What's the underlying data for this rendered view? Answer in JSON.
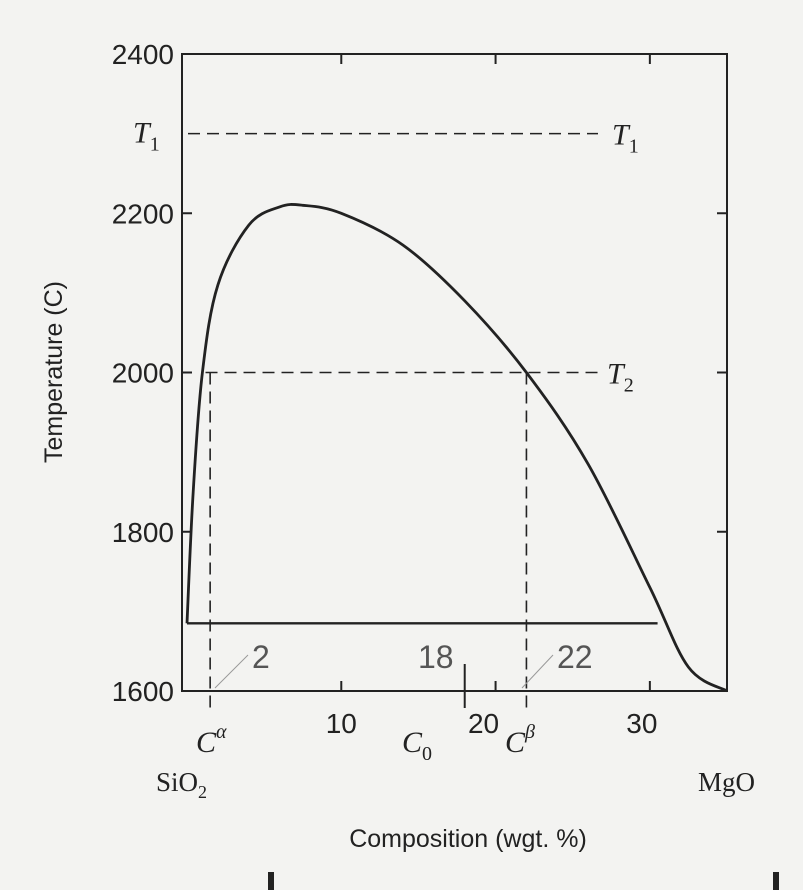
{
  "chart_data": {
    "type": "line",
    "title": "",
    "xlabel": "Composition (wgt. %)",
    "ylabel": "Temperature (C)",
    "xlim": [
      0,
      35
    ],
    "ylim": [
      1600,
      2400
    ],
    "x_ticks": [
      10,
      20,
      30
    ],
    "y_ticks": [
      2400,
      2200,
      2000,
      1800,
      1600
    ],
    "grid": false,
    "legend": "none",
    "left_component": "SiO",
    "left_component_sub": "2",
    "right_component": "MgO",
    "miscibility_gap": [
      [
        0.0,
        1685
      ],
      [
        0.4,
        1850
      ],
      [
        1.0,
        2000
      ],
      [
        2.0,
        2110
      ],
      [
        4.0,
        2185
      ],
      [
        6.0,
        2208
      ],
      [
        7.5,
        2210
      ],
      [
        10.0,
        2200
      ],
      [
        14.0,
        2160
      ],
      [
        18.0,
        2090
      ],
      [
        22.0,
        2000
      ],
      [
        26.0,
        1885
      ],
      [
        30.0,
        1730
      ],
      [
        32.5,
        1630
      ],
      [
        35.0,
        1600
      ]
    ],
    "eutectic_line": {
      "y": 1685,
      "x": [
        0.0,
        30.5
      ]
    },
    "isotherms": [
      {
        "symbol": "T",
        "sub": "1",
        "y": 2300
      },
      {
        "symbol": "T",
        "sub": "2",
        "y": 2000
      }
    ],
    "compositions": [
      {
        "symbol": "C",
        "sup": "α",
        "x": 1.5,
        "value": "2"
      },
      {
        "symbol": "C",
        "sub": "0",
        "x": 18,
        "value": "18"
      },
      {
        "symbol": "C",
        "sup": "β",
        "x": 22,
        "value": "22"
      }
    ]
  }
}
